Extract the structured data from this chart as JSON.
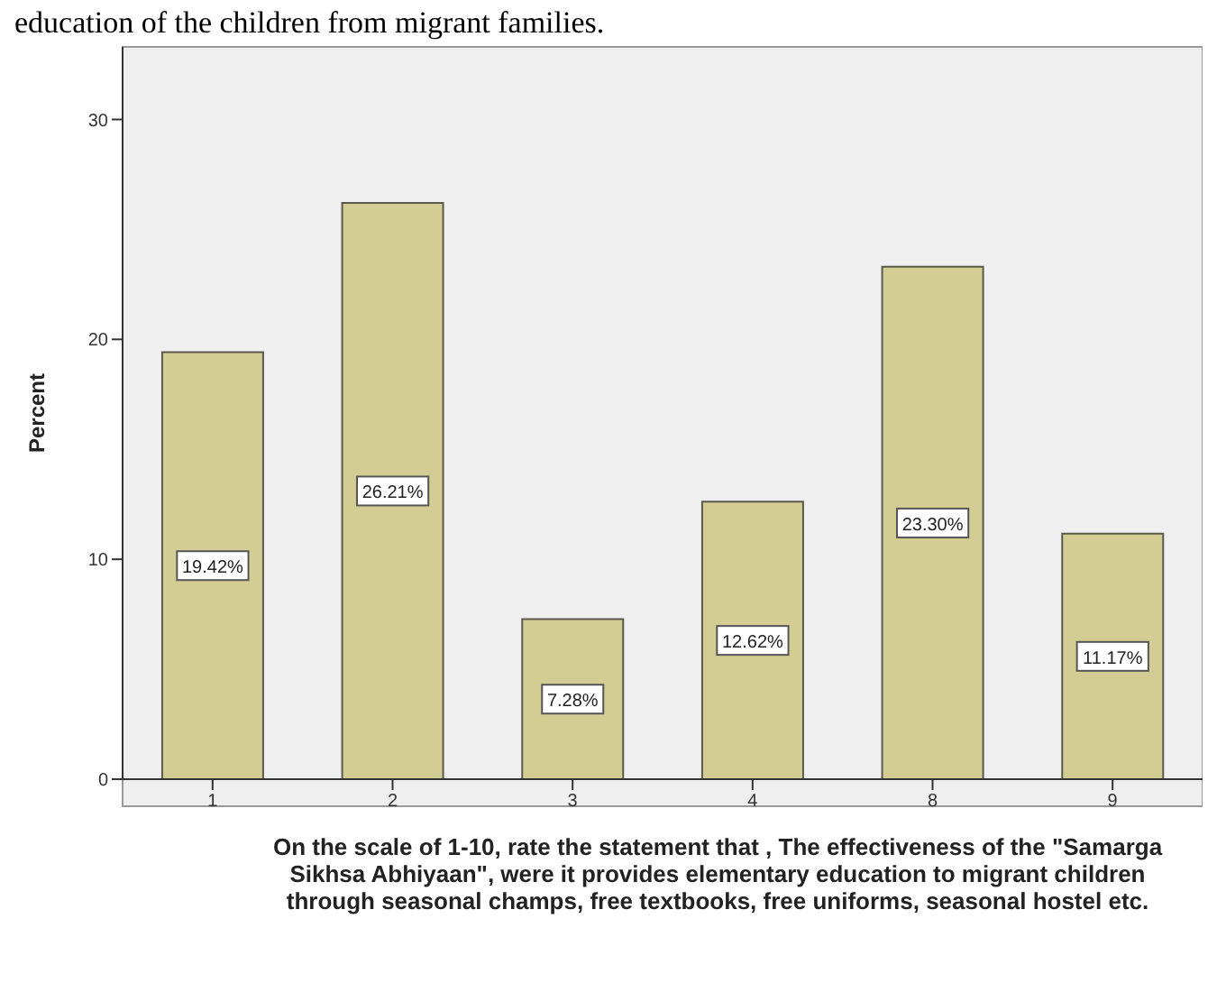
{
  "chart_data": {
    "type": "bar",
    "title": "education of the children from migrant families.",
    "categories": [
      "1",
      "2",
      "3",
      "4",
      "8",
      "9"
    ],
    "values": [
      19.42,
      26.21,
      7.28,
      12.62,
      23.3,
      11.17
    ],
    "value_labels": [
      "19.42%",
      "26.21%",
      "7.28%",
      "12.62%",
      "23.30%",
      "11.17%"
    ],
    "color": "#d3cd94",
    "ylim": [
      0,
      33.3
    ],
    "yticks": [
      0,
      10,
      20,
      30
    ],
    "legend": false,
    "ylabel": "Percent",
    "xlabel": "On the scale of 1-10, rate the statement that , The effectiveness of the \"Samarga Sikhsa Abhiyaan\", were it provides elementary education to migrant children through seasonal champs, free textbooks, free uniforms, seasonal hostel etc."
  }
}
